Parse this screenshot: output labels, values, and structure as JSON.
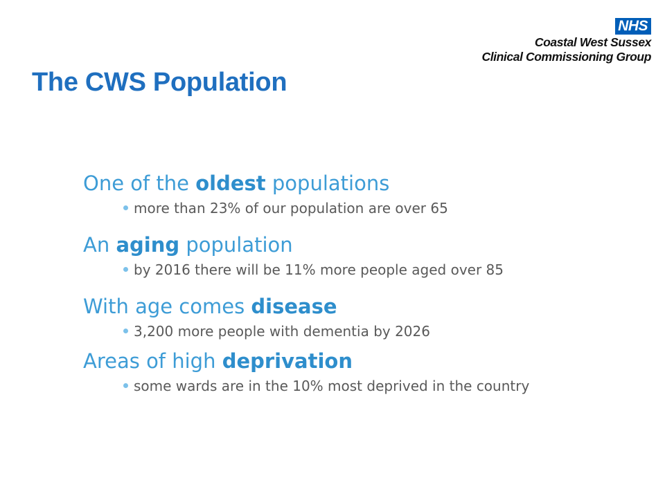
{
  "logo": {
    "badge": "NHS",
    "line1": "Coastal West Sussex",
    "line2": "Clinical Commissioning Group"
  },
  "title": "The CWS Population",
  "points": [
    {
      "pre": "One of the ",
      "bold": "oldest",
      "post": " populations",
      "bullet": "more than 23% of our population are over 65"
    },
    {
      "pre": "An ",
      "bold": "aging",
      "post": " population",
      "bullet": "by 2016 there will be 11% more people aged over 85"
    },
    {
      "pre": "With age comes ",
      "bold": "disease",
      "post": "",
      "bullet": "3,200 more people with dementia by 2026"
    },
    {
      "pre": "Areas of high ",
      "bold": "deprivation",
      "post": "",
      "bullet": "some wards are in the 10% most deprived in the country"
    }
  ],
  "colors": {
    "nhs_blue": "#005EB8",
    "title": "#1F6FBF",
    "heading": "#3D9CD6",
    "bullet_text": "#595959"
  }
}
